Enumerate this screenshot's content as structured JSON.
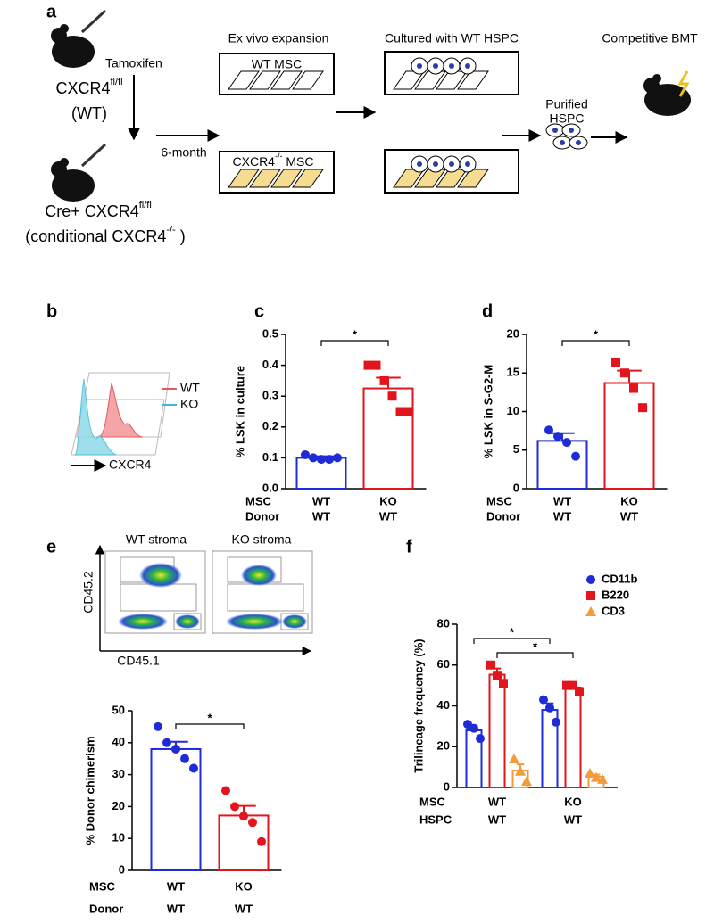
{
  "panel_a": {
    "letter": "a",
    "treatment": "Tamoxifen",
    "wt_mouse": {
      "text": "CXCR4",
      "sup": "fl/fl"
    },
    "wt_note": "(WT)",
    "ko_mouse": {
      "text": "Cre+ CXCR4",
      "sup": "fl/fl"
    },
    "ko_note": {
      "text": "(conditional CXCR4",
      "sup": "-/-",
      "tail": " )"
    },
    "duration": "6-month",
    "step1": "Ex vivo expansion",
    "wt_msc": "WT MSC",
    "ko_msc": {
      "text": "CXCR4",
      "sup": "-/-",
      "tail": " MSC"
    },
    "step2": "Cultured with WT HSPC",
    "purified": [
      "Purified",
      "HSPC"
    ],
    "step3": "Competitive BMT"
  },
  "panel_b": {
    "letter": "b",
    "legend": [
      "WT",
      "KO"
    ],
    "axis_label": "CXCR4"
  },
  "panel_e_flow": {
    "letter": "e",
    "plots": [
      "WT stroma",
      "KO stroma"
    ],
    "y_axis": "CD45.2",
    "x_axis": "CD45.1"
  },
  "chart_data": [
    {
      "type": "bar",
      "letter": "c",
      "ylabel": "% LSK in culture",
      "ylim": [
        0,
        0.5
      ],
      "yticks": [
        {
          "value": 0,
          "label": "0.0"
        },
        0.1,
        0.2,
        0.3,
        0.4,
        0.5
      ],
      "category_rows": [
        {
          "label": "MSC",
          "values": [
            "WT",
            "KO"
          ]
        },
        {
          "label": "Donor",
          "values": [
            "WT",
            "WT"
          ]
        }
      ],
      "values": [
        0.1,
        0.325
      ],
      "errors": [
        0.005,
        0.035
      ],
      "colors": [
        "#1f2bd6",
        "#e3141b"
      ],
      "markers": [
        "circle",
        "square"
      ],
      "points": [
        [
          0.11,
          0.1,
          0.095,
          0.095,
          0.1
        ],
        [
          0.4,
          0.4,
          0.35,
          0.3,
          0.25,
          0.25
        ]
      ],
      "significance": "*"
    },
    {
      "type": "bar",
      "letter": "d",
      "ylabel": "% LSK in S-G2-M",
      "ylim": [
        0,
        20
      ],
      "yticks": [
        0,
        5,
        10,
        15,
        20
      ],
      "category_rows": [
        {
          "label": "MSC",
          "values": [
            "WT",
            "KO"
          ]
        },
        {
          "label": "Donor",
          "values": [
            "WT",
            "WT"
          ]
        }
      ],
      "values": [
        6.2,
        13.7
      ],
      "errors": [
        1.0,
        1.6
      ],
      "colors": [
        "#1f2bd6",
        "#e3141b"
      ],
      "markers": [
        "circle",
        "square"
      ],
      "points": [
        [
          7.6,
          6.8,
          6.0,
          4.2
        ],
        [
          16.3,
          15.0,
          13.0,
          10.5
        ]
      ],
      "significance": "*"
    },
    {
      "type": "bar",
      "letter": "",
      "ylabel": "% Donor chimerism",
      "ylim": [
        0,
        50
      ],
      "yticks": [
        0,
        10,
        20,
        30,
        40,
        50
      ],
      "category_rows": [
        {
          "label": "MSC",
          "values": [
            "WT",
            "KO"
          ]
        },
        {
          "label": "Donor",
          "values": [
            "WT",
            "WT"
          ]
        }
      ],
      "values": [
        38,
        17.2
      ],
      "errors": [
        2.3,
        3.0
      ],
      "colors": [
        "#1f2bd6",
        "#e3141b"
      ],
      "markers": [
        "circle",
        "circle"
      ],
      "points": [
        [
          45,
          40,
          38,
          35,
          32
        ],
        [
          25,
          20,
          17,
          15,
          9
        ]
      ],
      "significance": "*"
    },
    {
      "type": "grouped_bar",
      "letter": "f",
      "ylabel": "Trilineage frequency (%)",
      "ylim": [
        0,
        80
      ],
      "yticks": [
        0,
        20,
        40,
        60,
        80
      ],
      "category_rows": [
        {
          "label": "MSC",
          "values": [
            "WT",
            "KO"
          ]
        },
        {
          "label": "HSPC",
          "values": [
            "WT",
            "WT"
          ]
        }
      ],
      "series": [
        {
          "name": "CD11b",
          "color": "#1f2bd6",
          "marker": "circle",
          "values": [
            28,
            38
          ],
          "errors": [
            2.2,
            3.2
          ],
          "points": [
            [
              31,
              29,
              24
            ],
            [
              43,
              39,
              32
            ]
          ]
        },
        {
          "name": "B220",
          "color": "#e3141b",
          "marker": "square",
          "values": [
            55.3,
            49
          ],
          "errors": [
            3,
            1.5
          ],
          "points": [
            [
              60,
              55,
              51
            ],
            [
              50,
              50,
              47
            ]
          ]
        },
        {
          "name": "CD3",
          "color": "#f39a3a",
          "marker": "triangle",
          "values": [
            8.3,
            5.3
          ],
          "errors": [
            3,
            1
          ],
          "points": [
            [
              14,
              8,
              3
            ],
            [
              7,
              5,
              4
            ]
          ]
        }
      ],
      "significance": [
        "*",
        "*"
      ]
    }
  ]
}
